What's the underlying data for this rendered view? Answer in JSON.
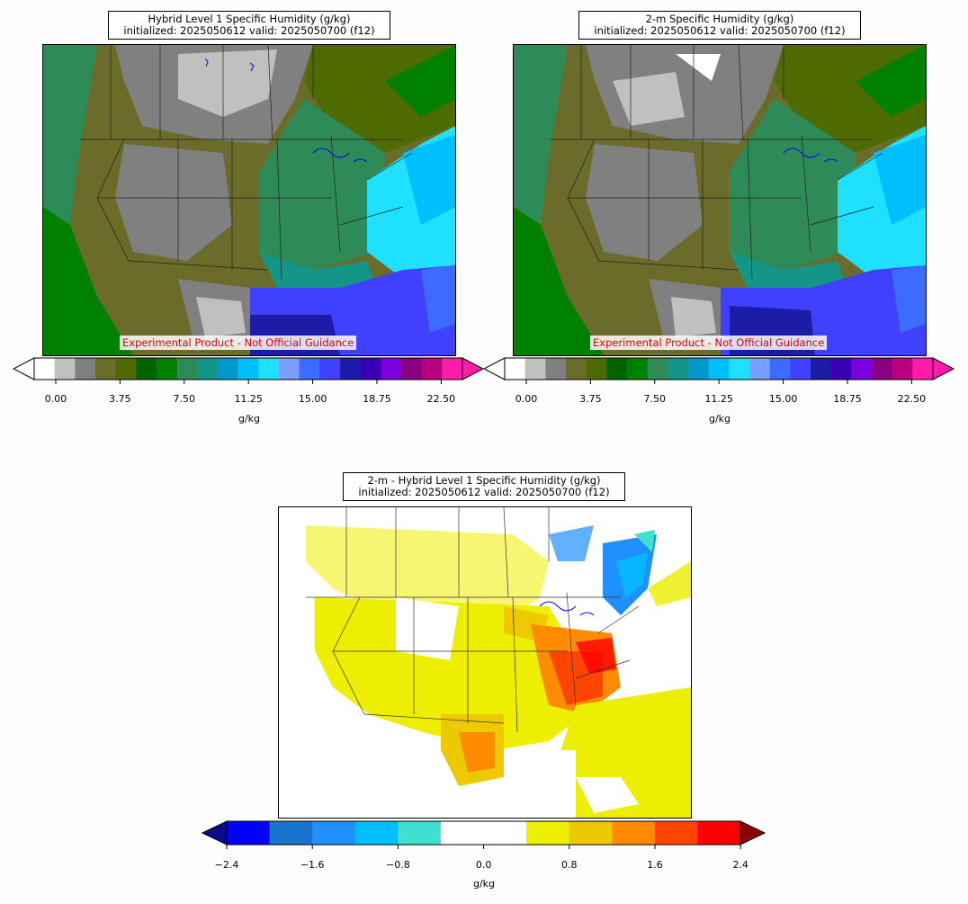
{
  "panels": [
    {
      "title_line1": "Hybrid Level 1 Specific Humidity (g/kg)",
      "title_line2": "initialized: 2025050612 valid: 2025050700 (f12)",
      "disclaimer": "Experimental Product - Not Official Guidance",
      "colorbar": {
        "colors": [
          "#ffffff",
          "#c0c0c0",
          "#808080",
          "#6b6b2a",
          "#4e6b00",
          "#006400",
          "#008000",
          "#2e8b57",
          "#139688",
          "#0099cc",
          "#00bfff",
          "#1fe0ff",
          "#7b9dff",
          "#3d6bff",
          "#4040ff",
          "#1c1ca8",
          "#3a00b5",
          "#7b00e0",
          "#8b0080",
          "#b80080",
          "#ff1ca8"
        ],
        "ticks": [
          "0.00",
          "3.75",
          "7.50",
          "11.25",
          "15.00",
          "18.75",
          "22.50"
        ],
        "units": "g/kg"
      }
    },
    {
      "title_line1": "2-m Specific Humidity (g/kg)",
      "title_line2": "initialized: 2025050612 valid: 2025050700 (f12)",
      "disclaimer": "Experimental Product - Not Official Guidance",
      "colorbar": {
        "colors": [
          "#ffffff",
          "#c0c0c0",
          "#808080",
          "#6b6b2a",
          "#4e6b00",
          "#006400",
          "#008000",
          "#2e8b57",
          "#139688",
          "#0099cc",
          "#00bfff",
          "#1fe0ff",
          "#7b9dff",
          "#3d6bff",
          "#4040ff",
          "#1c1ca8",
          "#3a00b5",
          "#7b00e0",
          "#8b0080",
          "#b80080",
          "#ff1ca8"
        ],
        "ticks": [
          "0.00",
          "3.75",
          "7.50",
          "11.25",
          "15.00",
          "18.75",
          "22.50"
        ],
        "units": "g/kg"
      }
    },
    {
      "title_line1": "2-m - Hybrid Level 1 Specific Humidity (g/kg)",
      "title_line2": "initialized: 2025050612 valid: 2025050700 (f12)",
      "colorbar": {
        "colors": [
          "#0000ff",
          "#1874cd",
          "#1e90ff",
          "#00bfff",
          "#40e0d0",
          "#ffffff",
          "#ffffff",
          "#eeee00",
          "#eec900",
          "#ff8c00",
          "#ff4500",
          "#ff0000"
        ],
        "ext_low": "#0a0a8c",
        "ext_high": "#8b0000",
        "ticks": [
          "−2.4",
          "−1.6",
          "−0.8",
          "0.0",
          "0.8",
          "1.6",
          "2.4"
        ],
        "units": "g/kg"
      }
    }
  ]
}
